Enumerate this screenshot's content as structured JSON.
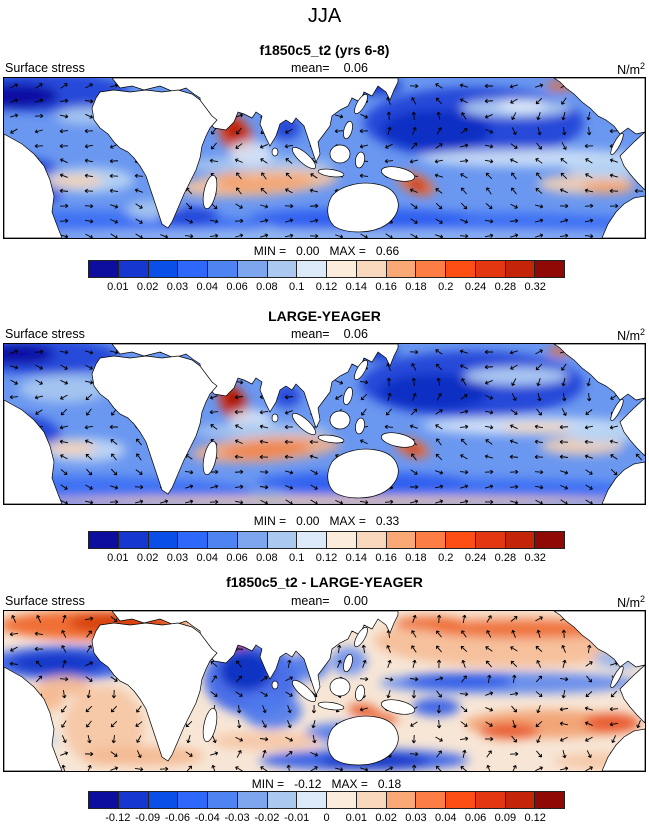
{
  "title": "JJA",
  "unit": {
    "base": "N/m",
    "sup": "2"
  },
  "labels": {
    "variable": "Surface stress",
    "mean": "mean=",
    "min": "MIN =",
    "max": "MAX ="
  },
  "panels": [
    {
      "subtitle": "f1850c5_t2 (yrs 6-8)",
      "mean": "0.06",
      "min": "0.00",
      "max": "0.66"
    },
    {
      "subtitle": "LARGE-YEAGER",
      "mean": "0.06",
      "min": "0.00",
      "max": "0.33"
    },
    {
      "subtitle": "f1850c5_t2 - LARGE-YEAGER",
      "mean": "0.00",
      "min": "-0.12",
      "max": "0.18"
    }
  ],
  "colorbar": {
    "colors": [
      "#0d0d9e",
      "#1638d0",
      "#0b4fe9",
      "#2e68fa",
      "#4f83f2",
      "#7ea6ee",
      "#abc8f0",
      "#dbe9f9",
      "#fbecdb",
      "#f9d7bc",
      "#fba877",
      "#fd7e44",
      "#fc4e12",
      "#e23710",
      "#c42408",
      "#8f0a04"
    ],
    "ticks_abs": [
      "0.01",
      "0.02",
      "0.03",
      "0.04",
      "0.06",
      "0.08",
      "0.1",
      "0.12",
      "0.14",
      "0.16",
      "0.18",
      "0.2",
      "0.24",
      "0.28",
      "0.32"
    ],
    "ticks_diff": [
      "-0.12",
      "-0.09",
      "-0.06",
      "-0.04",
      "-0.03",
      "-0.02",
      "-0.01",
      "0",
      "0.01",
      "0.02",
      "0.03",
      "0.04",
      "0.06",
      "0.09",
      "0.12"
    ]
  },
  "chart_data": {
    "type": "heatmap",
    "season_title": "JJA",
    "variable": "Surface stress",
    "units": "N/m^2",
    "projection": "global lat-lon filled-contour maps with wind-stress vector arrow overlay",
    "panels": [
      {
        "title": "f1850c5_t2 (yrs 6-8)",
        "mean": 0.06,
        "min": 0.0,
        "max": 0.66,
        "colorbar_levels": [
          0.01,
          0.02,
          0.03,
          0.04,
          0.06,
          0.08,
          0.1,
          0.12,
          0.14,
          0.16,
          0.18,
          0.2,
          0.24,
          0.28,
          0.32
        ],
        "palette": "blue-to-red, 16 classes",
        "notable_features": [
          "strong red Somali jet maximum in Arabian Sea",
          "orange SE trade-wind belt in south Indian Ocean",
          "dark blue (low stress) subtropical North Pacific gyre",
          "red patch east of New Guinea"
        ]
      },
      {
        "title": "LARGE-YEAGER",
        "mean": 0.06,
        "min": 0.0,
        "max": 0.33,
        "colorbar_levels": [
          0.01,
          0.02,
          0.03,
          0.04,
          0.06,
          0.08,
          0.1,
          0.12,
          0.14,
          0.16,
          0.18,
          0.2,
          0.24,
          0.28,
          0.32
        ],
        "palette": "blue-to-red, 16 classes",
        "notable_features": [
          "compact dark-red Somali jet maximum",
          "orange south Indian Ocean trade belt",
          "dark blue North Pacific gyre",
          "coarser blocky coastlines"
        ]
      },
      {
        "title": "f1850c5_t2 - LARGE-YEAGER",
        "mean": 0.0,
        "min": -0.12,
        "max": 0.18,
        "colorbar_levels": [
          -0.12,
          -0.09,
          -0.06,
          -0.04,
          -0.03,
          -0.02,
          -0.01,
          0,
          0.01,
          0.02,
          0.03,
          0.04,
          0.06,
          0.09,
          0.12
        ],
        "palette": "blue-to-red difference, 16 classes",
        "notable_features": [
          "orange positive band North Atlantic",
          "strong negative (blue) Arabian Sea / north Indian Ocean",
          "positive band North and South Pacific subtropics",
          "negative band equatorial Pacific and Southern Ocean south of Australia"
        ]
      }
    ]
  }
}
